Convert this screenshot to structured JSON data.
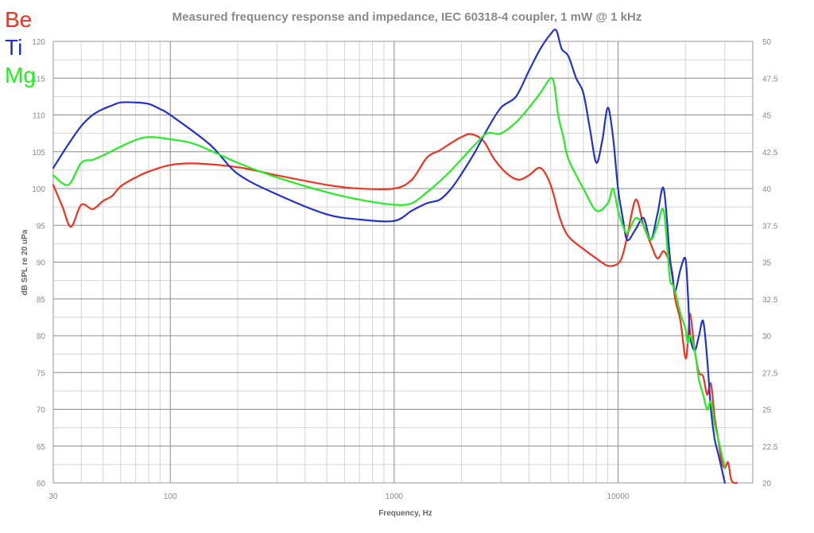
{
  "chart_data": {
    "type": "line",
    "title": "Measured frequency response and impedance, IEC 60318-4 coupler, 1 mW @ 1 kHz",
    "xlabel": "Frequency, Hz",
    "ylabel": "dB SPL re 20 uPa",
    "xscale": "log",
    "xlim": [
      30,
      40000
    ],
    "ylim": [
      60,
      120
    ],
    "y2lim": [
      20,
      50
    ],
    "grid": true,
    "legend_position": "top-left",
    "x_ticks": [
      30,
      100,
      1000,
      10000
    ],
    "x_tick_labels": [
      "30",
      "100",
      "1000",
      "10000"
    ],
    "y_ticks": [
      60,
      65,
      70,
      75,
      80,
      85,
      90,
      95,
      100,
      105,
      110,
      115,
      120
    ],
    "y_tick_labels": [
      "60",
      "65",
      "70",
      "75",
      "80",
      "85",
      "90",
      "95",
      "100",
      "105",
      "110",
      "115",
      "120"
    ],
    "y2_ticks": [
      20,
      22.5,
      25,
      27.5,
      30,
      32.5,
      35,
      37.5,
      40,
      42.5,
      45,
      47.5,
      50
    ],
    "y2_tick_labels": [
      "20",
      "22.5",
      "25",
      "27.5",
      "30",
      "32.5",
      "35",
      "37.5",
      "40",
      "42.5",
      "45",
      "47.5",
      "50"
    ],
    "series": [
      {
        "name": "Be",
        "color": "#ee3322",
        "x": [
          30,
          33,
          36,
          40,
          45,
          50,
          55,
          60,
          70,
          80,
          100,
          130,
          200,
          300,
          500,
          700,
          1000,
          1200,
          1400,
          1600,
          1800,
          2000,
          2200,
          2500,
          2800,
          3200,
          3600,
          4000,
          4500,
          5000,
          5500,
          6000,
          7000,
          8000,
          9000,
          10000,
          10500,
          11000,
          12000,
          13000,
          14000,
          15000,
          16000,
          17000,
          17500,
          18000,
          19000,
          20000,
          20500,
          21000,
          22000,
          23000,
          24000,
          25000,
          26000,
          27000,
          28000,
          29000,
          30000,
          31000,
          32000,
          33000,
          34000
        ],
        "values": [
          100.5,
          97.5,
          94.8,
          97.8,
          97.2,
          98.3,
          99,
          100.3,
          101.5,
          102.3,
          103.2,
          103.4,
          102.9,
          101.8,
          100.5,
          100,
          100,
          101.2,
          104.2,
          105.2,
          106.2,
          107,
          107.4,
          106.5,
          104,
          102,
          101.2,
          101.8,
          102.8,
          100.5,
          96,
          93.5,
          91.8,
          90.5,
          89.5,
          89.8,
          91,
          93.5,
          98.5,
          95,
          92.5,
          90.5,
          91.5,
          90,
          88.5,
          85,
          82,
          77,
          79,
          83,
          78,
          75,
          74.5,
          72,
          73.5,
          69,
          66,
          63,
          62,
          62.8,
          60.5,
          60,
          60
        ]
      },
      {
        "name": "Ti",
        "color": "#2233cc",
        "x": [
          30,
          35,
          40,
          45,
          50,
          55,
          60,
          70,
          80,
          90,
          100,
          150,
          200,
          300,
          500,
          700,
          1000,
          1200,
          1400,
          1600,
          1800,
          2000,
          2300,
          2600,
          3000,
          3500,
          4000,
          4500,
          5000,
          5300,
          5600,
          6000,
          6500,
          7000,
          7500,
          8000,
          8500,
          9000,
          9500,
          10000,
          10500,
          11000,
          12000,
          13000,
          14000,
          15000,
          16000,
          17000,
          17500,
          18000,
          19000,
          20000,
          20500,
          21000,
          22000,
          23000,
          24000,
          25000,
          26000,
          27000,
          28000,
          29000,
          30000
        ],
        "values": [
          102.8,
          106,
          108.5,
          110,
          110.8,
          111.3,
          111.7,
          111.7,
          111.5,
          110.8,
          110,
          106,
          102,
          99.2,
          96.5,
          95.8,
          95.6,
          97,
          98,
          98.5,
          100,
          102,
          105,
          108,
          111,
          112.5,
          116,
          119,
          121,
          121.5,
          119,
          118,
          115,
          113,
          108,
          103.5,
          106.5,
          111,
          107,
          100,
          96,
          93,
          94.5,
          96,
          93,
          96.5,
          100,
          91,
          88,
          86,
          89,
          90.5,
          86,
          80,
          78,
          80,
          82,
          77,
          70,
          66,
          64,
          62,
          60
        ]
      },
      {
        "name": "Mg",
        "color": "#22ee22",
        "x": [
          30,
          35,
          40,
          45,
          50,
          60,
          70,
          80,
          100,
          130,
          200,
          300,
          500,
          700,
          1000,
          1200,
          1400,
          1600,
          1800,
          2000,
          2300,
          2600,
          3000,
          3500,
          4000,
          4500,
          5000,
          5200,
          5400,
          5700,
          6000,
          7000,
          8000,
          9000,
          9500,
          10000,
          10500,
          11000,
          12000,
          13000,
          14000,
          15000,
          16000,
          17000,
          17500,
          18000,
          19000,
          20000,
          20500,
          21000,
          22000,
          23000,
          24000,
          25000,
          26000,
          27000,
          28000,
          29000,
          30000
        ],
        "values": [
          101.8,
          100.5,
          103.5,
          103.9,
          104.5,
          105.7,
          106.6,
          107,
          106.7,
          106,
          103.5,
          101.5,
          99.5,
          98.5,
          97.8,
          98,
          99.5,
          101,
          102.5,
          104,
          106,
          107.5,
          107.5,
          109,
          111,
          113,
          115,
          114,
          110,
          107,
          104,
          100,
          97,
          98,
          100,
          97,
          95,
          94,
          96,
          95,
          93,
          95,
          97,
          88,
          87,
          86,
          83,
          81,
          79,
          80,
          78,
          74,
          72,
          70,
          71,
          68,
          66,
          64,
          62
        ]
      }
    ]
  }
}
